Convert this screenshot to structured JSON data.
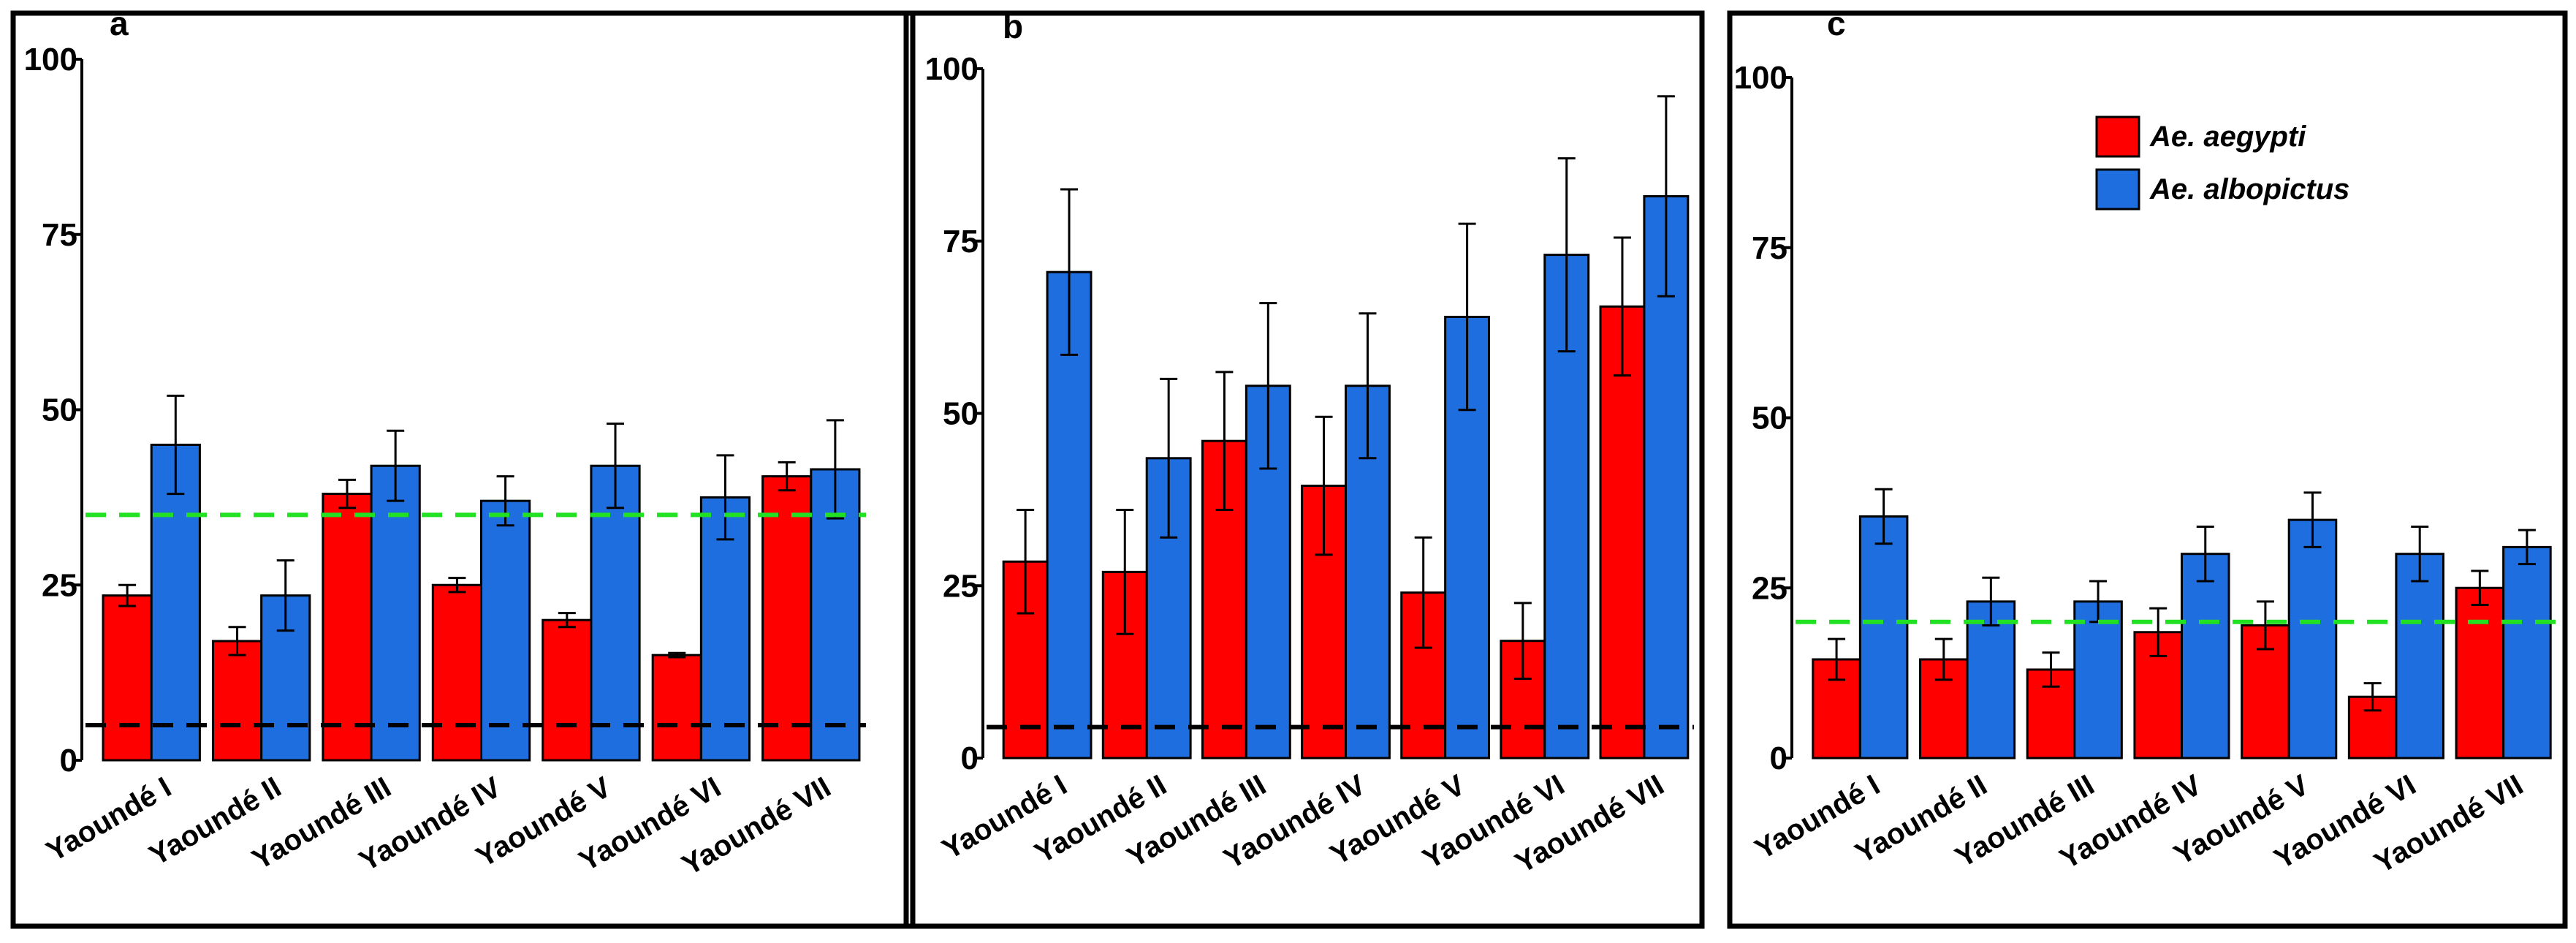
{
  "chart_data": [
    {
      "type": "bar",
      "panel": "a",
      "categories": [
        "Yaoundé I",
        "Yaoundé II",
        "Yaoundé III",
        "Yaoundé IV",
        "Yaoundé V",
        "Yaoundé VI",
        "Yaoundé VII"
      ],
      "series": [
        {
          "color": "#ff0000",
          "values": [
            23.5,
            17,
            38,
            25,
            20,
            15,
            40.5
          ],
          "errors": [
            1.5,
            2,
            2,
            1,
            1,
            0.3,
            2
          ]
        },
        {
          "color": "#1f6ee0",
          "values": [
            45,
            23.5,
            42,
            37,
            42,
            37.5,
            41.5
          ],
          "errors": [
            7,
            5,
            5,
            3.5,
            6,
            6,
            7
          ]
        }
      ],
      "ylim": [
        0,
        100
      ],
      "yticks": [
        0,
        25,
        50,
        75,
        100
      ],
      "hlines": [
        {
          "value": 35,
          "color": "#22e022"
        },
        {
          "value": 5,
          "color": "#000000"
        }
      ]
    },
    {
      "type": "bar",
      "panel": "b",
      "categories": [
        "Yaoundé I",
        "Yaoundé II",
        "Yaoundé III",
        "Yaoundé IV",
        "Yaoundé V",
        "Yaoundé VI",
        "Yaoundé VII"
      ],
      "series": [
        {
          "color": "#ff0000",
          "values": [
            28.5,
            27,
            46,
            39.5,
            24,
            17,
            65.5
          ],
          "errors": [
            7.5,
            9,
            10,
            10,
            8,
            5.5,
            10
          ]
        },
        {
          "color": "#1f6ee0",
          "values": [
            70.5,
            43.5,
            54,
            54,
            64,
            73,
            81.5
          ],
          "errors": [
            12,
            11.5,
            12,
            10.5,
            13.5,
            14,
            14.5
          ]
        }
      ],
      "ylim": [
        0,
        100
      ],
      "yticks": [
        0,
        25,
        50,
        75,
        100
      ],
      "hlines": [
        {
          "value": 4.5,
          "color": "#000000"
        }
      ]
    },
    {
      "type": "bar",
      "panel": "c",
      "categories": [
        "Yaoundé I",
        "Yaoundé II",
        "Yaoundé III",
        "Yaoundé IV",
        "Yaoundé V",
        "Yaoundé VI",
        "Yaoundé VII"
      ],
      "series": [
        {
          "name": "Ae. aegypti",
          "color": "#ff0000",
          "values": [
            14.5,
            14.5,
            13,
            18.5,
            19.5,
            9,
            25
          ],
          "errors": [
            3,
            3,
            2.5,
            3.5,
            3.5,
            2,
            2.5
          ]
        },
        {
          "name": "Ae. albopictus",
          "color": "#1f6ee0",
          "values": [
            35.5,
            23,
            23,
            30,
            35,
            30,
            31
          ],
          "errors": [
            4,
            3.5,
            3,
            4,
            4,
            4,
            2.5
          ]
        }
      ],
      "ylim": [
        0,
        100
      ],
      "yticks": [
        0,
        25,
        50,
        75,
        100
      ],
      "hlines": [
        {
          "value": 20,
          "color": "#22e022"
        }
      ],
      "legend": "top-right"
    }
  ]
}
